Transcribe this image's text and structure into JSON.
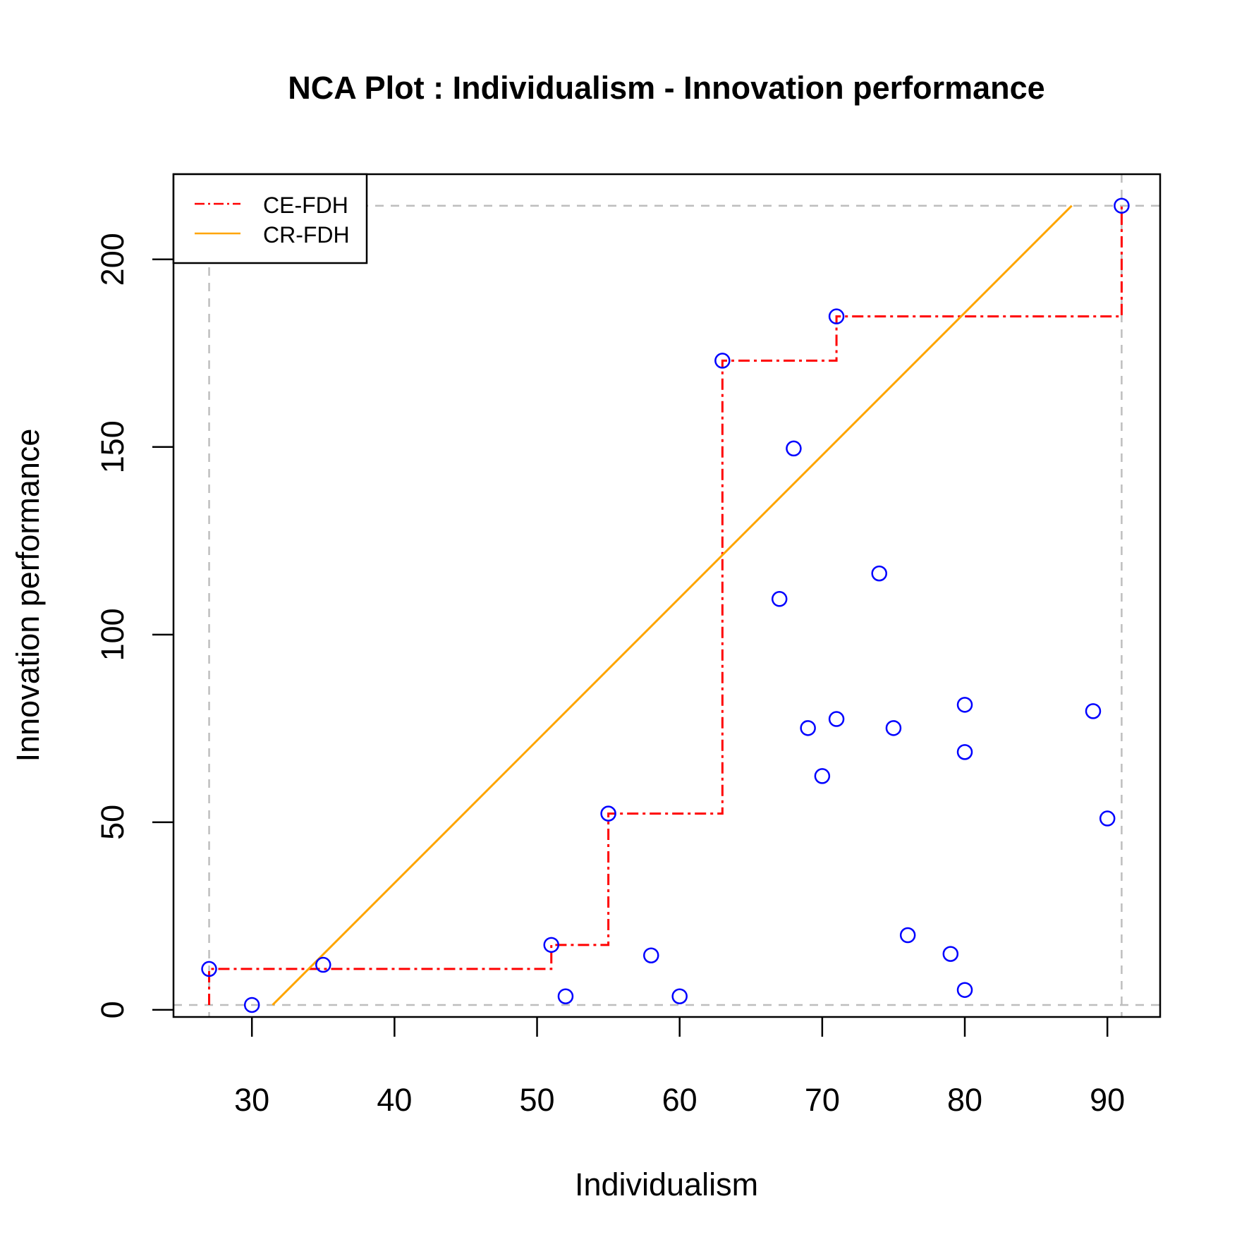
{
  "chart_data": {
    "type": "scatter",
    "title": "NCA Plot : Individualism - Innovation performance",
    "xlabel": "Individualism",
    "ylabel": "Innovation performance",
    "xlim": [
      24.5,
      93.7
    ],
    "ylim": [
      -1.9,
      222.7
    ],
    "xticks": [
      30,
      40,
      50,
      60,
      70,
      80,
      90
    ],
    "yticks": [
      0,
      50,
      100,
      150,
      200
    ],
    "grid": false,
    "legend_position": "top-left",
    "points": {
      "color": "#0000ff",
      "x": [
        27,
        30,
        35,
        51,
        52,
        55,
        58,
        60,
        63,
        67,
        68,
        69,
        70,
        71,
        71,
        74,
        75,
        76,
        79,
        80,
        80,
        80,
        89,
        90,
        91
      ],
      "y": [
        10.9,
        1.3,
        12,
        17.3,
        3.6,
        52.3,
        14.5,
        3.6,
        173,
        109.5,
        149.6,
        75.1,
        62.3,
        77.5,
        184.8,
        116.3,
        75.1,
        19.9,
        14.9,
        81.3,
        68.7,
        5.3,
        79.6,
        51,
        214.3
      ]
    },
    "reference_lines": {
      "color": "#bebebe",
      "x": [
        27,
        91
      ],
      "y": [
        1.3,
        214.3
      ]
    },
    "series": [
      {
        "name": "CE-FDH",
        "color": "#ff0000",
        "style": "dash-dot step",
        "x": [
          27,
          27,
          51,
          51,
          55,
          55,
          63,
          63,
          71,
          71,
          91,
          91
        ],
        "y": [
          1.3,
          10.9,
          10.9,
          17.3,
          17.3,
          52.3,
          52.3,
          173,
          173,
          184.8,
          184.8,
          214.3
        ]
      },
      {
        "name": "CR-FDH",
        "color": "#ffa500",
        "style": "solid",
        "x": [
          31.45,
          87.5
        ],
        "y": [
          1.3,
          214.3
        ]
      }
    ]
  }
}
